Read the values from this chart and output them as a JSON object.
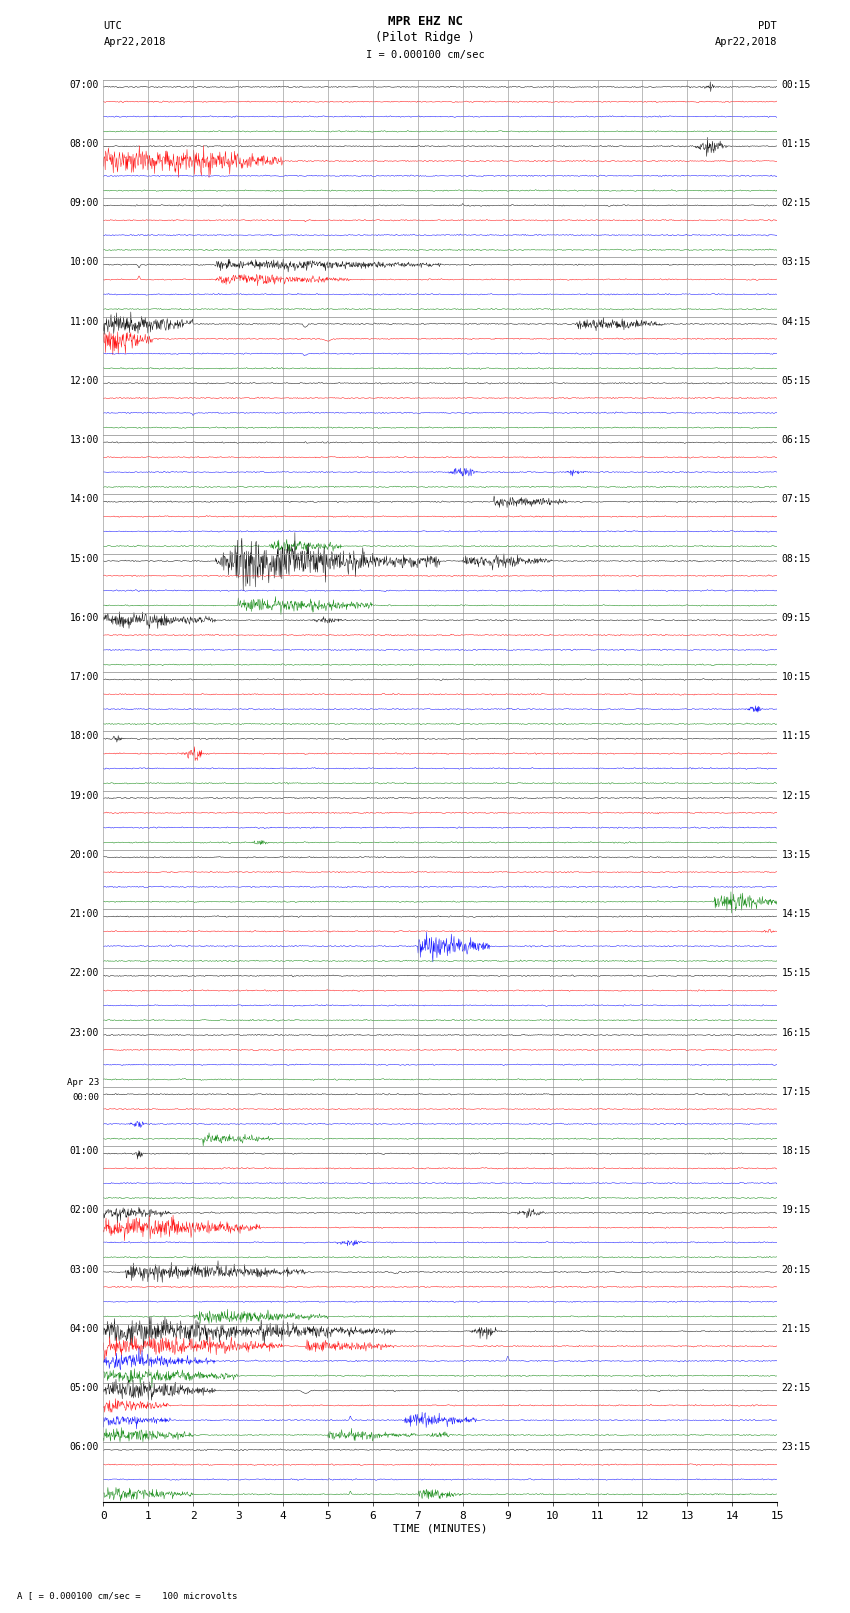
{
  "title_line1": "MPR EHZ NC",
  "title_line2": "(Pilot Ridge )",
  "scale_label": "I = 0.000100 cm/sec",
  "footer_label": "A [ = 0.000100 cm/sec =    100 microvolts",
  "xlabel": "TIME (MINUTES)",
  "bg_color": "#ffffff",
  "trace_colors": [
    "black",
    "red",
    "blue",
    "green"
  ],
  "utc_labels": [
    "07:00",
    "08:00",
    "09:00",
    "10:00",
    "11:00",
    "12:00",
    "13:00",
    "14:00",
    "15:00",
    "16:00",
    "17:00",
    "18:00",
    "19:00",
    "20:00",
    "21:00",
    "22:00",
    "23:00",
    "Apr 23\n00:00",
    "01:00",
    "02:00",
    "03:00",
    "04:00",
    "05:00",
    "06:00"
  ],
  "pdt_labels": [
    "00:15",
    "01:15",
    "02:15",
    "03:15",
    "04:15",
    "05:15",
    "06:15",
    "07:15",
    "08:15",
    "09:15",
    "10:15",
    "11:15",
    "12:15",
    "13:15",
    "14:15",
    "15:15",
    "16:15",
    "17:15",
    "18:15",
    "19:15",
    "20:15",
    "21:15",
    "22:15",
    "23:15"
  ],
  "n_hours": 24,
  "n_channels": 4,
  "x_min": 0,
  "x_max": 15,
  "x_ticks": [
    0,
    1,
    2,
    3,
    4,
    5,
    6,
    7,
    8,
    9,
    10,
    11,
    12,
    13,
    14,
    15
  ],
  "noise_amp": 0.04,
  "seed": 12345
}
